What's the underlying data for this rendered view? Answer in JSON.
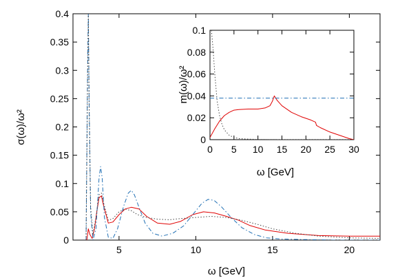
{
  "chart_data": [
    {
      "type": "line",
      "xlabel": "ω [GeV]",
      "ylabel": "σ(ω)/ω²",
      "xlim": [
        2,
        22
      ],
      "ylim": [
        0,
        0.4
      ],
      "xticks": [
        "5",
        "10",
        "15",
        "20"
      ],
      "yticks": [
        "0",
        "0.05",
        "0.1",
        "0.15",
        "0.2",
        "0.25",
        "0.3",
        "0.35",
        "0.4"
      ],
      "grid": false,
      "series": [
        {
          "style": "solid",
          "color": "#e00000",
          "x": [
            2.9,
            3.0,
            3.1,
            3.25,
            3.4,
            3.55,
            3.7,
            3.85,
            4.0,
            4.3,
            4.6,
            5.0,
            5.4,
            5.8,
            6.3,
            6.8,
            7.5,
            8.3,
            9.0,
            9.8,
            10.5,
            11.2,
            12.0,
            12.8,
            13.5,
            14.5,
            16.0,
            18.0,
            20.0,
            22.0
          ],
          "y": [
            0.0,
            0.02,
            0.01,
            0.003,
            0.02,
            0.05,
            0.075,
            0.078,
            0.06,
            0.03,
            0.032,
            0.045,
            0.055,
            0.058,
            0.055,
            0.042,
            0.03,
            0.028,
            0.033,
            0.045,
            0.05,
            0.048,
            0.042,
            0.035,
            0.026,
            0.018,
            0.012,
            0.008,
            0.007,
            0.007
          ]
        },
        {
          "style": "dash-dot",
          "color": "#1f6fb4",
          "x": [
            2.85,
            2.95,
            3.0,
            3.05,
            3.15,
            3.3,
            3.5,
            3.7,
            3.8,
            3.9,
            4.05,
            4.3,
            4.6,
            4.9,
            5.3,
            5.6,
            5.8,
            6.0,
            6.3,
            6.7,
            7.2,
            7.8,
            8.5,
            9.2,
            9.8,
            10.4,
            10.8,
            11.2,
            11.7,
            12.3,
            13.0,
            13.8,
            14.6,
            15.5,
            17.0,
            19.0,
            22.0
          ],
          "y": [
            0.0,
            0.3,
            0.4,
            0.25,
            0.05,
            0.0,
            0.02,
            0.11,
            0.13,
            0.11,
            0.04,
            0.005,
            0.003,
            0.02,
            0.06,
            0.083,
            0.088,
            0.08,
            0.058,
            0.03,
            0.012,
            0.007,
            0.012,
            0.025,
            0.045,
            0.065,
            0.072,
            0.07,
            0.058,
            0.04,
            0.022,
            0.01,
            0.004,
            0.002,
            0.001,
            0.0,
            0.0
          ]
        },
        {
          "style": "dotted",
          "color": "#444444",
          "x": [
            2.85,
            2.95,
            3.0,
            3.05,
            3.15,
            3.3,
            3.5,
            3.7,
            3.85,
            4.0,
            4.3,
            4.6,
            5.0,
            5.4,
            5.8,
            6.2,
            6.8,
            7.5,
            8.3,
            9.0,
            10.0,
            11.0,
            12.0,
            13.0,
            14.0,
            15.0,
            16.5,
            18.0,
            20.0,
            22.0
          ],
          "y": [
            0.0,
            0.28,
            0.4,
            0.25,
            0.06,
            0.01,
            0.04,
            0.08,
            0.083,
            0.065,
            0.035,
            0.038,
            0.05,
            0.055,
            0.052,
            0.045,
            0.04,
            0.037,
            0.036,
            0.038,
            0.04,
            0.042,
            0.04,
            0.035,
            0.028,
            0.02,
            0.012,
            0.007,
            0.004,
            0.003
          ]
        }
      ]
    },
    {
      "type": "line",
      "position": "inset top-right",
      "xlabel": "ω [GeV]",
      "ylabel": "m(ω)/ω²",
      "xlim": [
        0,
        30
      ],
      "ylim": [
        0,
        0.1
      ],
      "xticks": [
        "0",
        "5",
        "10",
        "15",
        "20",
        "25",
        "30"
      ],
      "yticks": [
        "0",
        "0.02",
        "0.04",
        "0.06",
        "0.08",
        "0.1"
      ],
      "grid": false,
      "series": [
        {
          "style": "solid",
          "color": "#e00000",
          "x": [
            0.0,
            0.5,
            1.0,
            2.0,
            3.0,
            4.0,
            5.0,
            6.0,
            8.0,
            10.0,
            11.5,
            12.5,
            13.0,
            13.4,
            14.0,
            15.0,
            17.0,
            19.0,
            21.0,
            22.0,
            22.2,
            23.0,
            25.0,
            27.0,
            29.0,
            30.0
          ],
          "y": [
            0.002,
            0.006,
            0.01,
            0.017,
            0.022,
            0.025,
            0.027,
            0.0275,
            0.028,
            0.028,
            0.029,
            0.031,
            0.035,
            0.04,
            0.036,
            0.031,
            0.025,
            0.021,
            0.018,
            0.016,
            0.013,
            0.011,
            0.007,
            0.004,
            0.001,
            0.0
          ]
        },
        {
          "style": "dash-dot",
          "color": "#1f6fb4",
          "x": [
            0.0,
            30.0
          ],
          "y": [
            0.038,
            0.038
          ]
        },
        {
          "style": "dotted",
          "color": "#444444",
          "x": [
            0.3,
            0.6,
            1.0,
            1.5,
            2.0,
            2.5,
            3.0,
            4.0,
            5.0,
            6.0,
            8.0,
            10.0,
            15.0,
            20.0,
            30.0
          ],
          "y": [
            0.1,
            0.085,
            0.06,
            0.035,
            0.022,
            0.014,
            0.009,
            0.004,
            0.002,
            0.001,
            0.0005,
            0.0002,
            0.0,
            0.0,
            0.0
          ]
        }
      ]
    }
  ]
}
